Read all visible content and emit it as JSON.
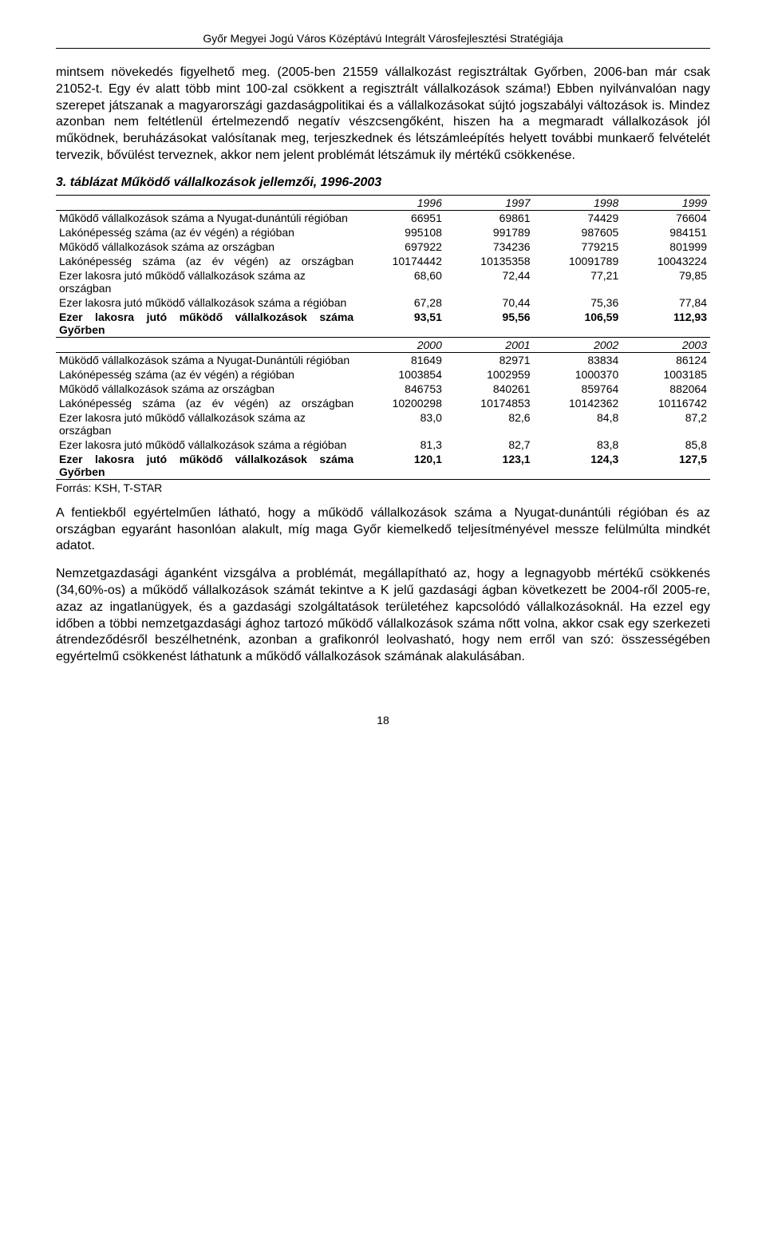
{
  "header": "Győr Megyei Jogú Város Középtávú Integrált Városfejlesztési Stratégiája",
  "para1": "mintsem növekedés figyelhető meg. (2005-ben 21559 vállalkozást regisztráltak Győrben, 2006-ban már csak 21052-t. Egy év alatt több mint 100-zal csökkent a regisztrált vállalkozások száma!) Ebben nyilvánvalóan nagy szerepet játszanak a magyarországi gazdaságpolitikai és a vállalkozásokat sújtó jogszabályi változások is. Mindez azonban nem feltétlenül értelmezendő negatív vészcsengőként, hiszen ha a megmaradt vállalkozások jól működnek, beruházásokat valósítanak meg, terjeszkednek és létszámleépítés helyett további munkaerő felvételét tervezik, bővülést terveznek, akkor nem jelent problémát létszámuk ily mértékű csökkenése.",
  "tableTitle": "3. táblázat Működő vállalkozások jellemzői, 1996-2003",
  "years1": [
    "1996",
    "1997",
    "1998",
    "1999"
  ],
  "years2": [
    "2000",
    "2001",
    "2002",
    "2003"
  ],
  "rows1": [
    {
      "label": "Működő vállalkozások száma a Nyugat-dunántúli régióban",
      "v": [
        "66951",
        "69861",
        "74429",
        "76604"
      ],
      "bold": false
    },
    {
      "label": "Lakónépesség száma (az év végén) a régióban",
      "v": [
        "995108",
        "991789",
        "987605",
        "984151"
      ],
      "bold": false
    },
    {
      "label": "Működő vállalkozások száma az országban",
      "v": [
        "697922",
        "734236",
        "779215",
        "801999"
      ],
      "bold": false
    },
    {
      "label": "Lakónépesség száma (az év végén) az országban",
      "v": [
        "10174442",
        "10135358",
        "10091789",
        "10043224"
      ],
      "bold": false,
      "justifyLabel": true
    },
    {
      "label": "Ezer lakosra jutó működő vállalkozások száma az országban",
      "v": [
        "68,60",
        "72,44",
        "77,21",
        "79,85"
      ],
      "bold": false
    },
    {
      "label": "Ezer lakosra jutó működő vállalkozások száma a régióban",
      "v": [
        "67,28",
        "70,44",
        "75,36",
        "77,84"
      ],
      "bold": false
    },
    {
      "label": "Ezer lakosra jutó működő vállalkozások száma Győrben",
      "v": [
        "93,51",
        "95,56",
        "106,59",
        "112,93"
      ],
      "bold": true,
      "justifyLabel": true
    }
  ],
  "rows2": [
    {
      "label": "Müködő vállalkozások száma a Nyugat-Dunántúli régióban",
      "v": [
        "81649",
        "82971",
        "83834",
        "86124"
      ],
      "bold": false
    },
    {
      "label": "Lakónépesség száma (az év végén) a régióban",
      "v": [
        "1003854",
        "1002959",
        "1000370",
        "1003185"
      ],
      "bold": false
    },
    {
      "label": "Működő vállalkozások száma az országban",
      "v": [
        "846753",
        "840261",
        "859764",
        "882064"
      ],
      "bold": false
    },
    {
      "label": "Lakónépesség száma (az év végén) az országban",
      "v": [
        "10200298",
        "10174853",
        "10142362",
        "10116742"
      ],
      "bold": false,
      "justifyLabel": true
    },
    {
      "label": "Ezer lakosra jutó működő vállalkozások száma az országban",
      "v": [
        "83,0",
        "82,6",
        "84,8",
        "87,2"
      ],
      "bold": false
    },
    {
      "label": "Ezer lakosra jutó működő vállalkozások száma a régióban",
      "v": [
        "81,3",
        "82,7",
        "83,8",
        "85,8"
      ],
      "bold": false
    },
    {
      "label": "Ezer lakosra jutó működő vállalkozások száma Győrben",
      "v": [
        "120,1",
        "123,1",
        "124,3",
        "127,5"
      ],
      "bold": true,
      "justifyLabel": true
    }
  ],
  "source": "Forrás: KSH, T-STAR",
  "para2": "A fentiekből egyértelműen látható, hogy a működő vállalkozások száma a Nyugat-dunántúli régióban és az országban egyaránt hasonlóan alakult, míg maga Győr kiemelkedő teljesítményével messze felülmúlta mindkét adatot.",
  "para3": "Nemzetgazdasági áganként vizsgálva a problémát, megállapítható az, hogy a legnagyobb mértékű csökkenés (34,60%-os) a működő vállalkozások számát tekintve a K jelű gazdasági ágban következett be 2004-ről 2005-re, azaz az ingatlanügyek, és a gazdasági szolgáltatások területéhez kapcsolódó vállalkozásoknál. Ha ezzel egy időben a többi nemzetgazdasági ághoz tartozó működő vállalkozások száma nőtt volna, akkor csak egy szerkezeti átrendeződésről beszélhetnénk, azonban a grafikonról leolvasható, hogy nem erről van szó: összességében egyértelmű csökkenést láthatunk a működő vállalkozások számának alakulásában.",
  "pageNumber": "18",
  "styles": {
    "bodyFontSize": 16,
    "tableFontSize": 14,
    "textColor": "#000000",
    "backgroundColor": "#ffffff",
    "pageWidth": 960,
    "pageHeight": 1572
  }
}
